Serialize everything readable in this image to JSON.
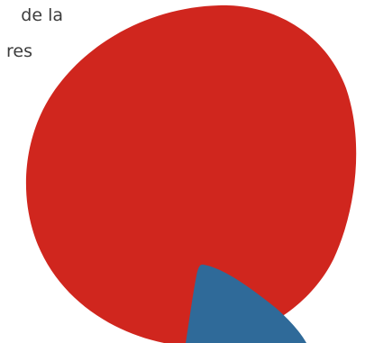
{
  "caption": {
    "line1": "de la",
    "line2": "res"
  },
  "colors": {
    "blob_red": "#d0261e",
    "blob_blue": "#2f6a99",
    "text": "#3c3c3c",
    "background": "#ffffff"
  }
}
